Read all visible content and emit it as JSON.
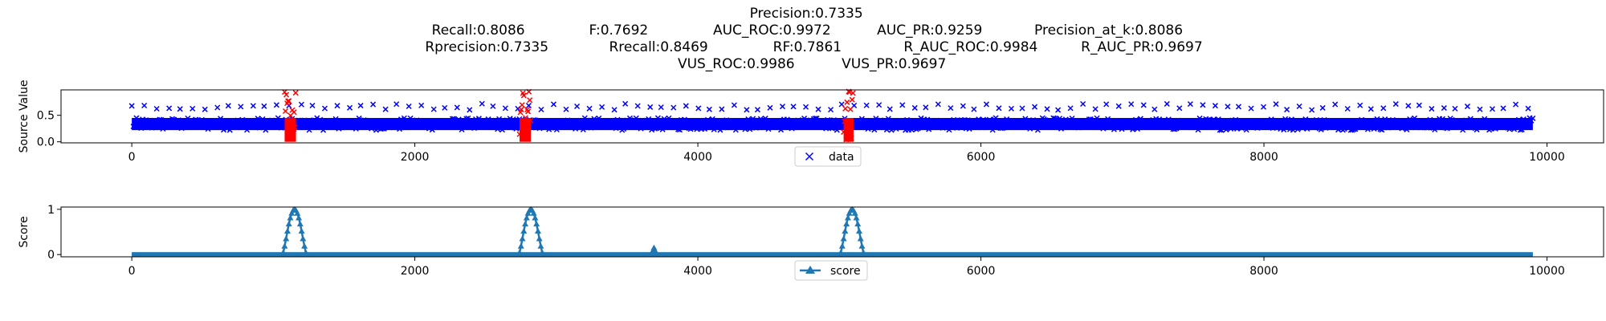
{
  "title_lines": [
    [
      "Precision:0.7335"
    ],
    [
      "Recall:0.8086",
      "F:0.7692",
      "AUC_ROC:0.9972",
      "AUC_PR:0.9259",
      "Precision_at_k:0.8086"
    ],
    [
      "Rprecision:0.7335",
      "Rrecall:0.8469",
      "RF:0.7861",
      "R_AUC_ROC:0.9984",
      "R_AUC_PR:0.9697"
    ],
    [
      "VUS_ROC:0.9986",
      "VUS_PR:0.9697"
    ]
  ],
  "colors": {
    "data": "#0000ff",
    "anomaly": "#ff0000",
    "score": "#1f77b4"
  },
  "chart_data": [
    {
      "type": "scatter",
      "ylabel": "Source Value",
      "xlim": [
        -500,
        10400
      ],
      "ylim": [
        -0.02,
        0.98
      ],
      "xticks": [
        0,
        2000,
        4000,
        6000,
        8000,
        10000
      ],
      "yticks": [
        0.0,
        0.5
      ],
      "ytick_labels": [
        "0.0",
        "0.5"
      ],
      "marker": "x",
      "legend": {
        "label": "data",
        "placement": "bottom-center"
      },
      "series": [
        {
          "name": "data",
          "x_range": [
            0,
            9900
          ],
          "baseline_range": [
            0.22,
            0.45
          ],
          "periodic_peak": 0.72,
          "period": 85
        }
      ],
      "anomaly_ranges": [
        {
          "x": [
            1080,
            1160
          ],
          "y": [
            0.0,
            0.98
          ]
        },
        {
          "x": [
            2740,
            2820
          ],
          "y": [
            0.0,
            0.98
          ]
        },
        {
          "x": [
            5030,
            5100
          ],
          "y": [
            0.0,
            0.98
          ]
        }
      ]
    },
    {
      "type": "line",
      "ylabel": "Score",
      "xlim": [
        -500,
        10400
      ],
      "ylim": [
        -0.05,
        1.05
      ],
      "xticks": [
        0,
        2000,
        4000,
        6000,
        8000,
        10000
      ],
      "yticks": [
        0,
        1
      ],
      "ytick_labels": [
        "0",
        "1"
      ],
      "marker": "^",
      "legend": {
        "label": "score",
        "placement": "bottom-center"
      },
      "series": [
        {
          "name": "score",
          "x_range": [
            0,
            9900
          ],
          "baseline": 0.0,
          "peaks": [
            {
              "center": 1150,
              "width": 170,
              "value": 1.0
            },
            {
              "center": 2820,
              "width": 170,
              "value": 1.0
            },
            {
              "center": 5090,
              "width": 170,
              "value": 1.0
            }
          ],
          "minor_peaks": [
            {
              "x": 3690,
              "value": 0.15
            }
          ]
        }
      ]
    }
  ]
}
